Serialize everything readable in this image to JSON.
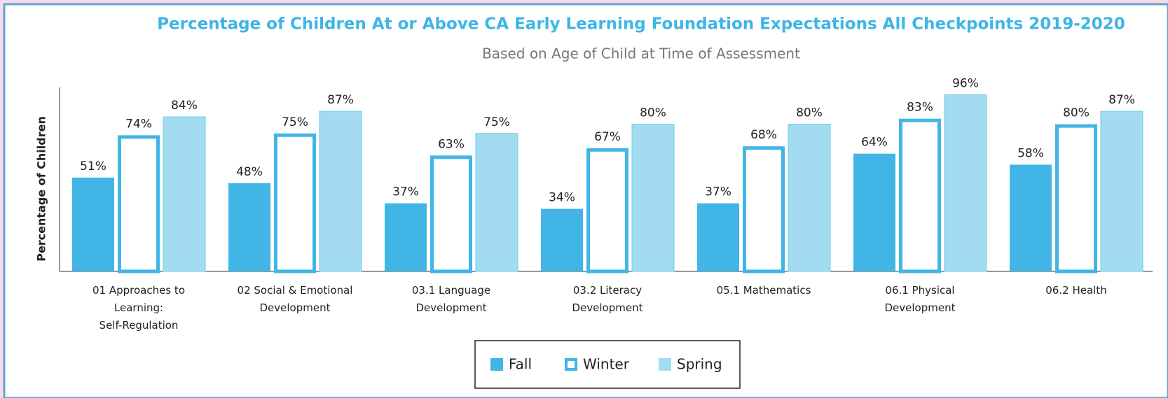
{
  "chart_data": {
    "type": "bar",
    "title": "Percentage of Children At or Above CA Early Learning Foundation Expectations All Checkpoints 2019-2020",
    "subtitle": "Based on Age of Child at Time of Assessment",
    "y_label": "Percentage of Children",
    "categories": [
      "01 Approaches to\nLearning:\nSelf-Regulation",
      "02 Social & Emotional\nDevelopment",
      "03.1 Language\nDevelopment",
      "03.2 Literacy\nDevelopment",
      "05.1 Mathematics",
      "06.1 Physical\nDevelopment",
      "06.2 Health"
    ],
    "series": [
      {
        "name": "Fall",
        "color": "#41b6e6",
        "style": "filled",
        "values": [
          51,
          48,
          37,
          34,
          37,
          64,
          58
        ],
        "value_labels": [
          "51%",
          "48%",
          "37%",
          "34%",
          "37%",
          "64%",
          "58%"
        ]
      },
      {
        "name": "Winter",
        "color": "#41b6e6",
        "style": "outline",
        "values": [
          74,
          75,
          63,
          67,
          68,
          83,
          80
        ],
        "value_labels": [
          "74%",
          "75%",
          "63%",
          "67%",
          "68%",
          "83%",
          "80%"
        ]
      },
      {
        "name": "Spring",
        "color": "#a3dbf0",
        "style": "filled",
        "values": [
          84,
          87,
          75,
          80,
          80,
          96,
          87
        ],
        "value_labels": [
          "84%",
          "87%",
          "75%",
          "80%",
          "80%",
          "96%",
          "87%"
        ]
      }
    ],
    "ylim": [
      0,
      100
    ],
    "legend": "bottom"
  }
}
